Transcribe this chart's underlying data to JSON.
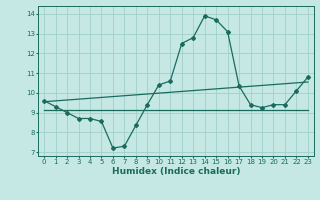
{
  "xlabel": "Humidex (Indice chaleur)",
  "ylabel": "",
  "background_color": "#c5e8e5",
  "grid_color": "#a0d0cc",
  "line_color": "#1a6b5e",
  "xlim": [
    -0.5,
    23.5
  ],
  "ylim": [
    6.8,
    14.4
  ],
  "xticks": [
    0,
    1,
    2,
    3,
    4,
    5,
    6,
    7,
    8,
    9,
    10,
    11,
    12,
    13,
    14,
    15,
    16,
    17,
    18,
    19,
    20,
    21,
    22,
    23
  ],
  "yticks": [
    7,
    8,
    9,
    10,
    11,
    12,
    13,
    14
  ],
  "hours": [
    0,
    1,
    2,
    3,
    4,
    5,
    6,
    7,
    8,
    9,
    10,
    11,
    12,
    13,
    14,
    15,
    16,
    17,
    18,
    19,
    20,
    21,
    22,
    23
  ],
  "humidex": [
    9.6,
    9.3,
    9.0,
    8.7,
    8.7,
    8.55,
    7.2,
    7.3,
    8.35,
    9.4,
    10.4,
    10.6,
    12.5,
    12.8,
    13.9,
    13.7,
    13.1,
    10.35,
    9.4,
    9.25,
    9.4,
    9.4,
    10.1,
    10.8
  ],
  "line2_x": [
    0,
    23
  ],
  "line2_y": [
    9.55,
    10.55
  ],
  "line3_x": [
    0,
    23
  ],
  "line3_y": [
    9.15,
    9.15
  ],
  "tick_fontsize": 5,
  "xlabel_fontsize": 6.5,
  "marker_size": 2.0
}
